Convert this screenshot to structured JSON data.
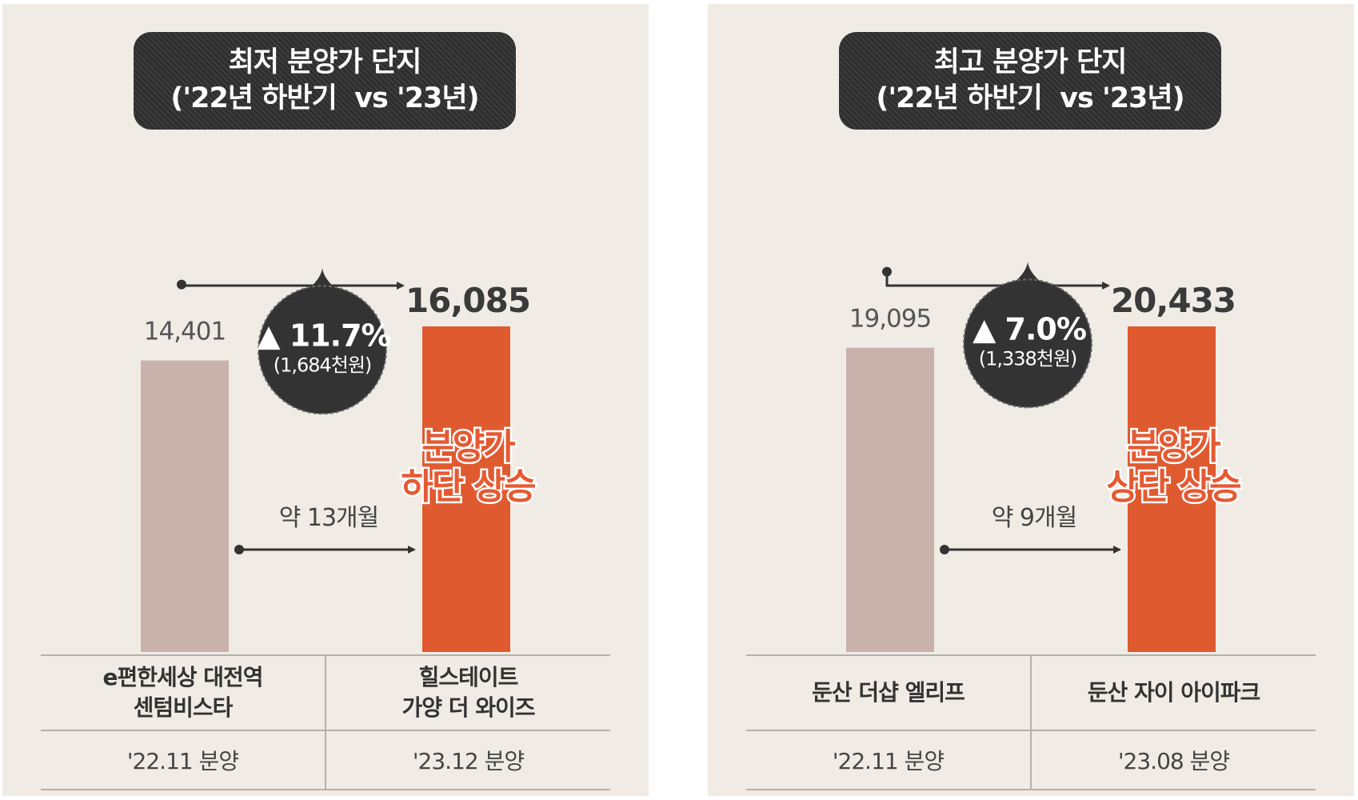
{
  "panels": [
    {
      "title_lines": [
        "최저 분양가 단지",
        "('22년 하반기  vs '23년)"
      ],
      "badge": {
        "pct": "▲ 11.7%",
        "diff": "(1,684천원)"
      },
      "duration": "약 13개월",
      "overlay": [
        "분양가",
        "하단 상승"
      ],
      "complexes": [
        {
          "name_lines": [
            "e편한세상 대전역",
            "센텀비스타"
          ],
          "date": "'22.11 분양"
        },
        {
          "name_lines": [
            "힐스테이트",
            "가양 더 와이즈"
          ],
          "date": "'23.12 분양"
        }
      ]
    },
    {
      "title_lines": [
        "최고 분양가 단지",
        "('22년 하반기  vs '23년)"
      ],
      "badge": {
        "pct": "▲ 7.0%",
        "diff": "(1,338천원)"
      },
      "duration": "약 9개월",
      "overlay": [
        "분양가",
        "상단 상승"
      ],
      "complexes": [
        {
          "name_lines": [
            "둔산 더샵 엘리프"
          ],
          "date": "'22.11 분양"
        },
        {
          "name_lines": [
            "둔산 자이 아이파크"
          ],
          "date": "'23.08 분양"
        }
      ]
    }
  ],
  "colors": {
    "bar_before": "#c9b1ac",
    "bar_after": "#e05a30",
    "panel_bg": "#f0ece5",
    "badge": "#333333"
  },
  "chart_data": [
    {
      "type": "bar",
      "title": "최저 분양가 단지 ('22년 하반기  vs '23년)",
      "categories": [
        "e편한세상 대전역 센텀비스타",
        "힐스테이트 가양 더 와이즈"
      ],
      "values": [
        14401,
        16085
      ],
      "value_labels": [
        "14,401",
        "16,085"
      ],
      "ylim": [
        0,
        16085
      ]
    },
    {
      "type": "bar",
      "title": "최고 분양가 단지 ('22년 하반기  vs '23년)",
      "categories": [
        "둔산 더샵 엘리프",
        "둔산 자이 아이파크"
      ],
      "values": [
        19095,
        20433
      ],
      "value_labels": [
        "19,095",
        "20,433"
      ],
      "ylim": [
        0,
        20433
      ]
    }
  ]
}
